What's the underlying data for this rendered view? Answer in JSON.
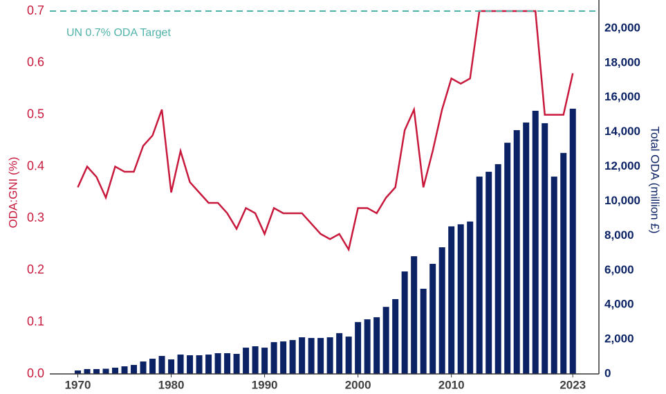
{
  "chart_data": {
    "type": "bar_line",
    "y_label": "ODA:GNI (%)",
    "y2_label": "Total ODA (million £)",
    "x": [
      1970,
      1971,
      1972,
      1973,
      1974,
      1975,
      1976,
      1977,
      1978,
      1979,
      1980,
      1981,
      1982,
      1983,
      1984,
      1985,
      1986,
      1987,
      1988,
      1989,
      1990,
      1991,
      1992,
      1993,
      1994,
      1995,
      1996,
      1997,
      1998,
      1999,
      2000,
      2001,
      2002,
      2003,
      2004,
      2005,
      2006,
      2007,
      2008,
      2009,
      2010,
      2011,
      2012,
      2013,
      2014,
      2015,
      2016,
      2017,
      2018,
      2019,
      2020,
      2021,
      2022,
      2023
    ],
    "series": [
      {
        "name": "Total ODA (million £)",
        "type": "bar",
        "axis": "y2",
        "color": "#0b2265",
        "values": [
          200,
          280,
          280,
          300,
          360,
          440,
          520,
          720,
          880,
          1040,
          840,
          1120,
          1080,
          1080,
          1120,
          1200,
          1200,
          1160,
          1520,
          1600,
          1520,
          1840,
          1880,
          1960,
          2120,
          2080,
          2080,
          2120,
          2360,
          2160,
          3000,
          3160,
          3280,
          3880,
          4330,
          5930,
          6810,
          4930,
          6370,
          7330,
          8540,
          8660,
          8820,
          11420,
          11700,
          12140,
          13380,
          14110,
          14550,
          15230,
          14510,
          11420,
          12790,
          15350
        ]
      },
      {
        "name": "ODA:GNI (%)",
        "type": "line",
        "axis": "y",
        "color": "#c8193c",
        "values": [
          0.36,
          0.4,
          0.38,
          0.34,
          0.4,
          0.39,
          0.39,
          0.44,
          0.46,
          0.51,
          0.35,
          0.43,
          0.37,
          0.35,
          0.33,
          0.33,
          0.31,
          0.28,
          0.32,
          0.31,
          0.27,
          0.32,
          0.31,
          0.31,
          0.31,
          0.29,
          0.27,
          0.26,
          0.27,
          0.24,
          0.32,
          0.32,
          0.31,
          0.34,
          0.36,
          0.47,
          0.51,
          0.36,
          0.43,
          0.51,
          0.57,
          0.56,
          0.57,
          0.7,
          0.7,
          0.7,
          0.7,
          0.7,
          0.7,
          0.7,
          0.5,
          0.5,
          0.5,
          0.58
        ]
      }
    ],
    "target": {
      "value": 0.7,
      "label": "UN 0.7% ODA Target",
      "color": "#4fb3a9"
    },
    "xlim": [
      1967,
      2025.5
    ],
    "xticks": [
      1970,
      1980,
      1990,
      2000,
      2010,
      2023
    ],
    "ylim": [
      0,
      0.7
    ],
    "yticks": [
      {
        "value": 0,
        "label": "0.0"
      },
      0.1,
      0.2,
      0.3,
      0.4,
      0.5,
      0.6,
      0.7
    ],
    "y2lim": [
      0,
      21000
    ],
    "y2ticks": [
      0,
      {
        "value": 2000,
        "label": "2,000"
      },
      {
        "value": 4000,
        "label": "4,000"
      },
      {
        "value": 6000,
        "label": "6,000"
      },
      {
        "value": 8000,
        "label": "8,000"
      },
      {
        "value": 10000,
        "label": "10,000"
      },
      {
        "value": 12000,
        "label": "12,000"
      },
      {
        "value": 14000,
        "label": "14,000"
      },
      {
        "value": 16000,
        "label": "16,000"
      },
      {
        "value": 18000,
        "label": "18,000"
      },
      {
        "value": 20000,
        "label": "20,000"
      }
    ]
  }
}
